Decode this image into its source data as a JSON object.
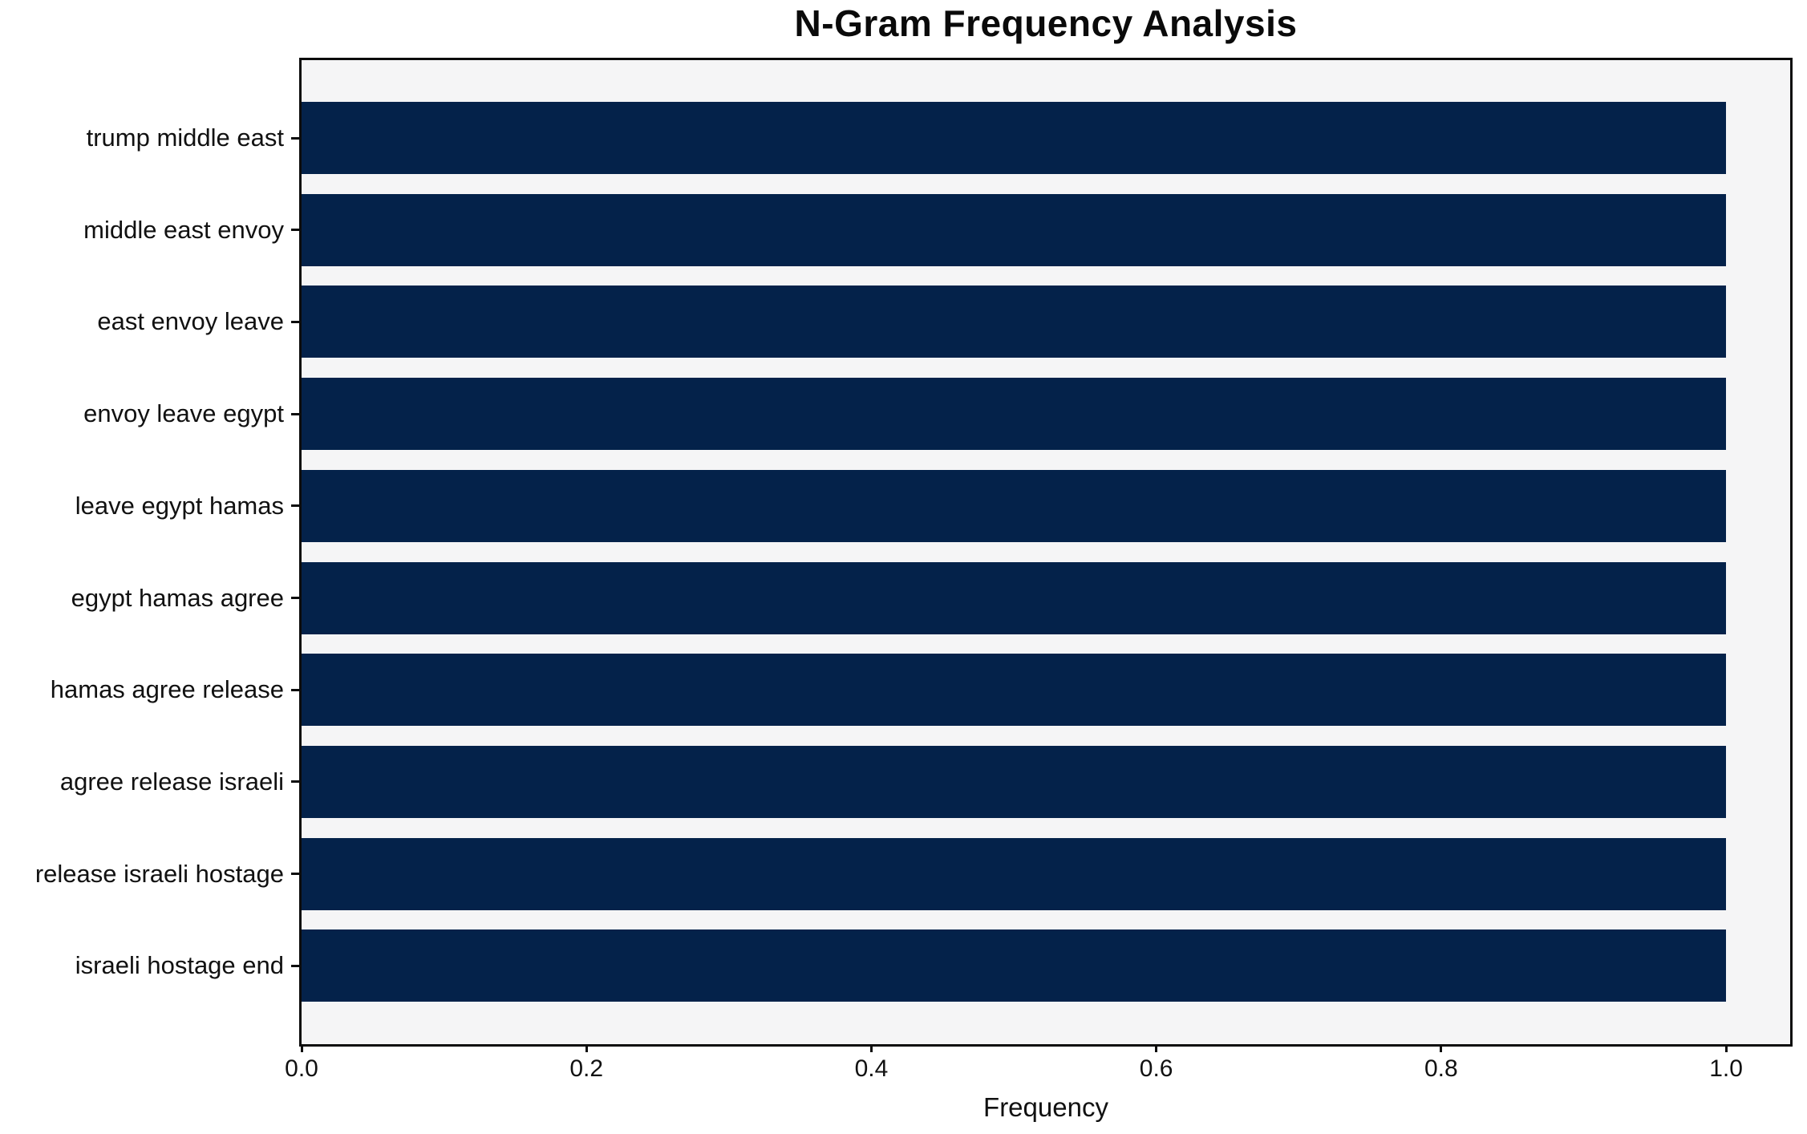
{
  "chart_data": {
    "type": "bar",
    "orientation": "horizontal",
    "title": "N-Gram Frequency Analysis",
    "xlabel": "Frequency",
    "ylabel": "",
    "categories": [
      "trump middle east",
      "middle east envoy",
      "east envoy leave",
      "envoy leave egypt",
      "leave egypt hamas",
      "egypt hamas agree",
      "hamas agree release",
      "agree release israeli",
      "release israeli hostage",
      "israeli hostage end"
    ],
    "values": [
      1.0,
      1.0,
      1.0,
      1.0,
      1.0,
      1.0,
      1.0,
      1.0,
      1.0,
      1.0
    ],
    "xticks": [
      {
        "value": 0.0,
        "label": "0.0"
      },
      {
        "value": 0.2,
        "label": "0.2"
      },
      {
        "value": 0.4,
        "label": "0.4"
      },
      {
        "value": 0.6,
        "label": "0.6"
      },
      {
        "value": 0.8,
        "label": "0.8"
      },
      {
        "value": 1.0,
        "label": "1.0"
      }
    ],
    "xlim": [
      0,
      1.045
    ],
    "grid": false,
    "legend": null,
    "bar_color": "#04224a",
    "plot_background": "#f5f5f6",
    "figure_background": "#ffffff"
  }
}
